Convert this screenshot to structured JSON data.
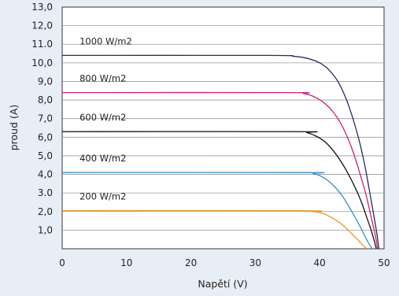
{
  "chart_data": {
    "type": "line",
    "title": "",
    "xlabel": "Napětí (V)",
    "ylabel": "proud (A)",
    "xlim": [
      0,
      50
    ],
    "ylim": [
      0,
      13
    ],
    "x_ticks": [
      "0",
      "10",
      "20",
      "30",
      "40",
      "50"
    ],
    "y_ticks": [
      "1,0",
      "2,0",
      "3.0",
      "4,0",
      "5,0",
      "6,0",
      "7,0",
      "8,0",
      "9,0",
      "10,0",
      "11.0",
      "12,0",
      "13,0"
    ],
    "grid": "horizontal",
    "series": [
      {
        "name": "1000 W/m2",
        "color": "#2e2a5e",
        "x": [
          0,
          32,
          36,
          38,
          40,
          41.5,
          43,
          44.5,
          46,
          47,
          48,
          48.8,
          49.2
        ],
        "y": [
          10.4,
          10.4,
          10.35,
          10.25,
          10.0,
          9.6,
          8.9,
          7.7,
          6.0,
          4.5,
          2.6,
          1.0,
          0.0
        ]
      },
      {
        "name": "800 W/m2",
        "color": "#cc2077",
        "x": [
          0,
          35,
          37.5,
          39,
          40.5,
          42,
          43.5,
          45,
          46.2,
          47.2,
          48,
          48.6,
          49.0
        ],
        "y": [
          8.4,
          8.4,
          8.35,
          8.2,
          7.9,
          7.4,
          6.6,
          5.4,
          4.1,
          2.9,
          1.7,
          0.8,
          0.0
        ]
      },
      {
        "name": "600 W/m2",
        "color": "#111111",
        "x": [
          0,
          36.5,
          38,
          39.5,
          41,
          42.5,
          44,
          45.5,
          46.5,
          47.3,
          48,
          48.5,
          48.8
        ],
        "y": [
          6.3,
          6.3,
          6.25,
          6.05,
          5.7,
          5.1,
          4.3,
          3.3,
          2.5,
          1.7,
          1.0,
          0.4,
          0.0
        ]
      },
      {
        "name": "400 W/m2",
        "color": "#3a8fc6",
        "x": [
          0,
          37.5,
          39,
          40.5,
          42,
          43.5,
          45,
          46.2,
          47,
          47.6,
          48.2
        ],
        "y": [
          4.1,
          4.1,
          4.05,
          3.85,
          3.45,
          2.85,
          2.0,
          1.25,
          0.7,
          0.3,
          0.0
        ]
      },
      {
        "name": "200 W/m2",
        "color": "#e79a2e",
        "x": [
          0,
          37,
          39,
          40.5,
          42,
          43.5,
          45,
          46,
          46.7,
          47.3
        ],
        "y": [
          2.05,
          2.05,
          2.0,
          1.9,
          1.65,
          1.3,
          0.8,
          0.45,
          0.2,
          0.0
        ]
      }
    ]
  }
}
